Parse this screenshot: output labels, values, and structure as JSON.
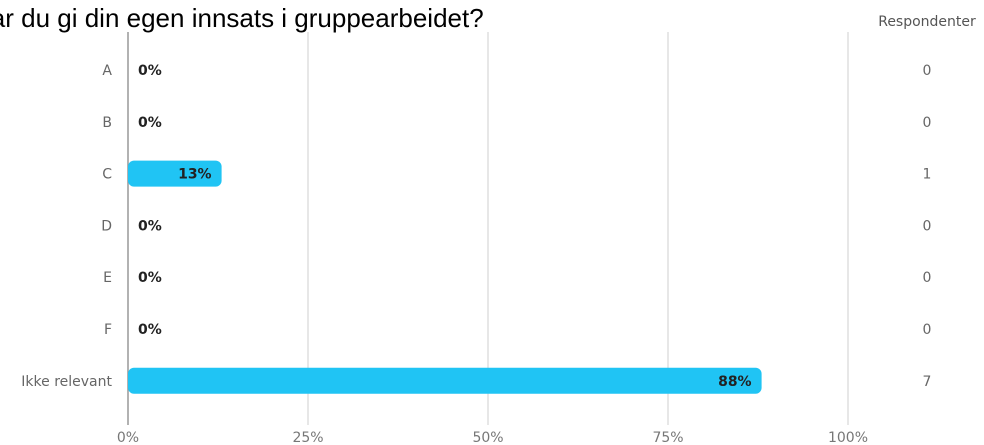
{
  "chart_data": {
    "type": "bar",
    "orientation": "horizontal",
    "title": "Har du gi din egen innsats i gruppearbeidet?",
    "categories": [
      "A",
      "B",
      "C",
      "D",
      "E",
      "F",
      "Ikke relevant"
    ],
    "values": [
      0,
      0,
      13,
      0,
      0,
      0,
      88
    ],
    "value_labels": [
      "0%",
      "0%",
      "13%",
      "0%",
      "0%",
      "0%",
      "88%"
    ],
    "respondents_header": "Respondenter",
    "respondents": [
      0,
      0,
      1,
      0,
      0,
      0,
      7
    ],
    "xlim": [
      0,
      100
    ],
    "xticks": [
      "0%",
      "25%",
      "50%",
      "75%",
      "100%"
    ],
    "grid": true,
    "bar_color": "#20c4f4"
  }
}
